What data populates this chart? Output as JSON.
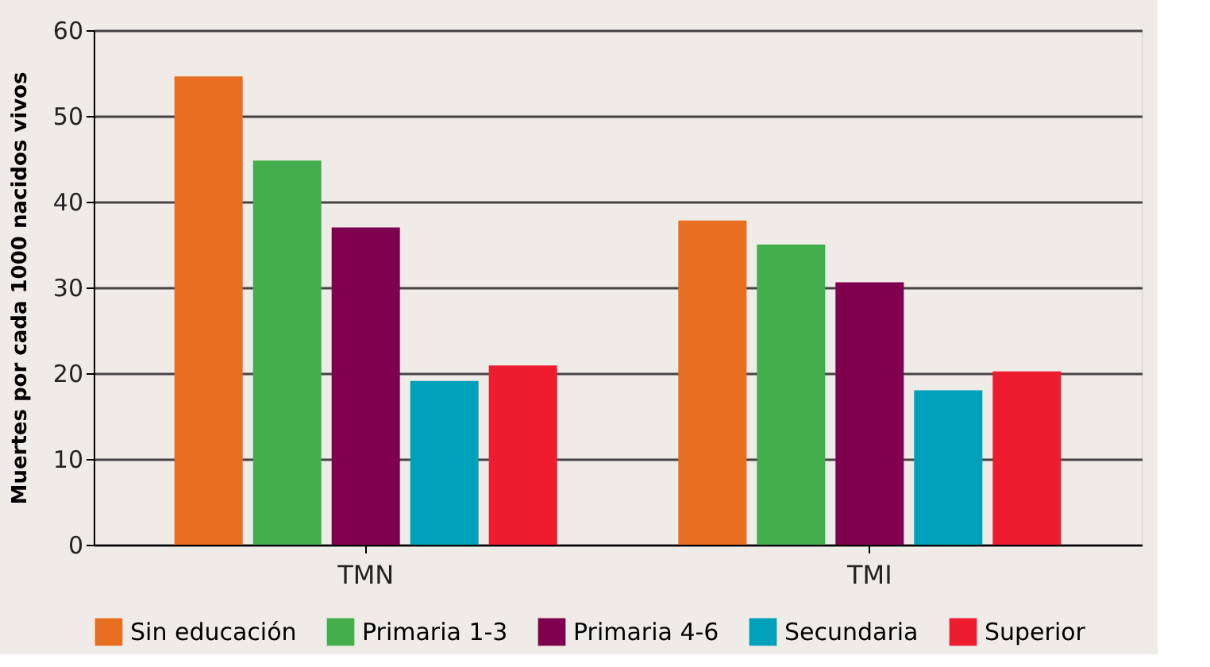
{
  "chart_data": {
    "type": "bar",
    "ylabel": "Muertes por cada 1000 nacidos vivos",
    "categories": [
      "TMN",
      "TMI"
    ],
    "series": [
      {
        "name": "Sin educación",
        "color": "#e86e22",
        "values": [
          54.6,
          37.8
        ]
      },
      {
        "name": "Primaria 1-3",
        "color": "#43ae4c",
        "values": [
          44.8,
          35.0
        ]
      },
      {
        "name": "Primaria 4-6",
        "color": "#800050",
        "values": [
          37.0,
          30.6
        ]
      },
      {
        "name": "Secundaria",
        "color": "#00a0bb",
        "values": [
          19.1,
          18.0
        ]
      },
      {
        "name": "Superior",
        "color": "#ed1c2e",
        "values": [
          20.9,
          20.2
        ]
      }
    ],
    "ylim": [
      0,
      60
    ],
    "yticks": [
      0,
      10,
      20,
      30,
      40,
      50,
      60
    ],
    "grid": "y",
    "legend": "bottom"
  }
}
